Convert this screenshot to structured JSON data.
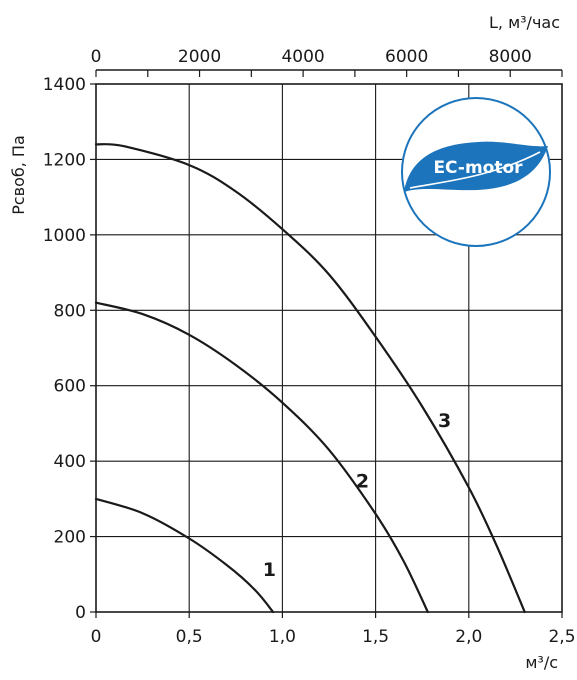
{
  "chart_data": {
    "type": "line",
    "x_axis_bottom": {
      "label": "м³/с",
      "range": [
        0,
        2.5
      ],
      "ticks": [
        {
          "value": 0,
          "label": "0"
        },
        {
          "value": 0.5,
          "label": "0,5"
        },
        {
          "value": 1.0,
          "label": "1,0"
        },
        {
          "value": 1.5,
          "label": "1,5"
        },
        {
          "value": 2.0,
          "label": "2,0"
        },
        {
          "value": 2.5,
          "label": "2,5"
        }
      ]
    },
    "x_axis_top": {
      "label": "L, м³/час",
      "range": [
        0,
        9000
      ],
      "ticks": [
        {
          "value": 0,
          "label": "0"
        },
        {
          "value": 2000,
          "label": "2000"
        },
        {
          "value": 4000,
          "label": "4000"
        },
        {
          "value": 6000,
          "label": "6000"
        },
        {
          "value": 8000,
          "label": "8000"
        }
      ],
      "minor_step": 1000
    },
    "y_axis": {
      "label": "Рсвоб, Па",
      "range": [
        0,
        1400
      ],
      "ticks": [
        {
          "value": 0,
          "label": "0"
        },
        {
          "value": 200,
          "label": "200"
        },
        {
          "value": 400,
          "label": "400"
        },
        {
          "value": 600,
          "label": "600"
        },
        {
          "value": 800,
          "label": "800"
        },
        {
          "value": 1000,
          "label": "1000"
        },
        {
          "value": 1200,
          "label": "1200"
        },
        {
          "value": 1400,
          "label": "1400"
        }
      ]
    },
    "grid": true,
    "series": [
      {
        "name": "1",
        "points": [
          [
            0,
            300
          ],
          [
            0.25,
            262
          ],
          [
            0.5,
            195
          ],
          [
            0.7,
            125
          ],
          [
            0.85,
            60
          ],
          [
            0.95,
            0
          ]
        ]
      },
      {
        "name": "2",
        "points": [
          [
            0,
            820
          ],
          [
            0.25,
            790
          ],
          [
            0.5,
            735
          ],
          [
            0.75,
            655
          ],
          [
            1.0,
            555
          ],
          [
            1.25,
            430
          ],
          [
            1.5,
            260
          ],
          [
            1.65,
            135
          ],
          [
            1.78,
            0
          ]
        ]
      },
      {
        "name": "3",
        "points": [
          [
            0,
            1240
          ],
          [
            0.15,
            1235
          ],
          [
            0.5,
            1185
          ],
          [
            0.75,
            1115
          ],
          [
            1.0,
            1015
          ],
          [
            1.25,
            895
          ],
          [
            1.5,
            730
          ],
          [
            1.75,
            545
          ],
          [
            2.0,
            330
          ],
          [
            2.15,
            175
          ],
          [
            2.3,
            0
          ]
        ]
      }
    ],
    "curve_labels": [
      {
        "text": "1",
        "x": 0.93,
        "y": 95
      },
      {
        "text": "2",
        "x": 1.43,
        "y": 330
      },
      {
        "text": "3",
        "x": 1.87,
        "y": 490
      }
    ]
  },
  "badge": {
    "text": "EC-motor",
    "color": "#1c75bc"
  }
}
